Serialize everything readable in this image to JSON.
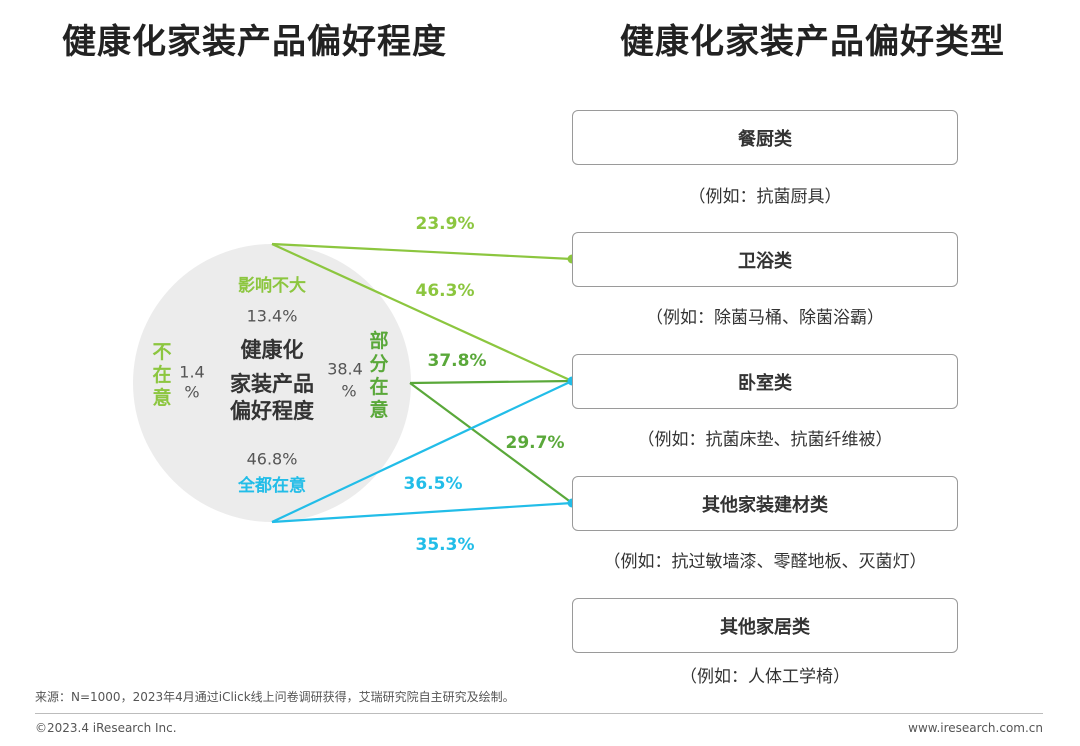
{
  "titles": {
    "left": "健康化家装产品偏好程度",
    "right": "健康化家装产品偏好类型"
  },
  "colors": {
    "light_green": "#8cc63f",
    "dark_green": "#5aa83a",
    "cyan": "#22bde8",
    "circle_fill": "#ececec"
  },
  "chart_data": {
    "type": "pie",
    "center_label": "健康化家装产品偏好程度",
    "slices": [
      {
        "label": "影响不大",
        "value": 13.4,
        "color": "#8cc63f"
      },
      {
        "label": "部分在意",
        "value": 38.4,
        "color": "#5aa83a"
      },
      {
        "label": "全都在意",
        "value": 46.8,
        "color": "#22bde8"
      },
      {
        "label": "不在意",
        "value": 1.4,
        "color": "#8cc63f"
      }
    ],
    "flows": [
      {
        "from": "影响不大",
        "to": "卫浴类",
        "value": 23.9
      },
      {
        "from": "影响不大",
        "to": "卧室类",
        "value": 46.3
      },
      {
        "from": "部分在意",
        "to": "卧室类",
        "value": 37.8
      },
      {
        "from": "部分在意",
        "to": "其他家装建材类",
        "value": 29.7
      },
      {
        "from": "全都在意",
        "to": "卧室类",
        "value": 36.5
      },
      {
        "from": "全都在意",
        "to": "其他家装建材类",
        "value": 35.3
      }
    ],
    "display": {
      "center_lines": [
        "健康化",
        "家装产品",
        "偏好程度"
      ],
      "slice_values": [
        "13.4%",
        "38.4",
        "%",
        "46.8%",
        "1.4",
        "%"
      ],
      "vertical_labels": {
        "partial": [
          "部",
          "分",
          "在",
          "意"
        ],
        "none": [
          "不",
          "在",
          "意"
        ]
      },
      "flow_values": [
        "23.9%",
        "46.3%",
        "37.8%",
        "29.7%",
        "36.5%",
        "35.3%"
      ]
    }
  },
  "categories": [
    {
      "name": "餐厨类",
      "example": "（例如：抗菌厨具）"
    },
    {
      "name": "卫浴类",
      "example": "（例如：除菌马桶、除菌浴霸）"
    },
    {
      "name": "卧室类",
      "example": "（例如：抗菌床垫、抗菌纤维被）"
    },
    {
      "name": "其他家装建材类",
      "example": "（例如：抗过敏墙漆、零醛地板、灭菌灯）"
    },
    {
      "name": "其他家居类",
      "example": "（例如：人体工学椅）"
    }
  ],
  "footer": {
    "source": "来源：N=1000，2023年4月通过iClick线上问卷调研获得，艾瑞研究院自主研究及绘制。",
    "copyright": "©2023.4 iResearch Inc.",
    "website": "www.iresearch.com.cn"
  }
}
